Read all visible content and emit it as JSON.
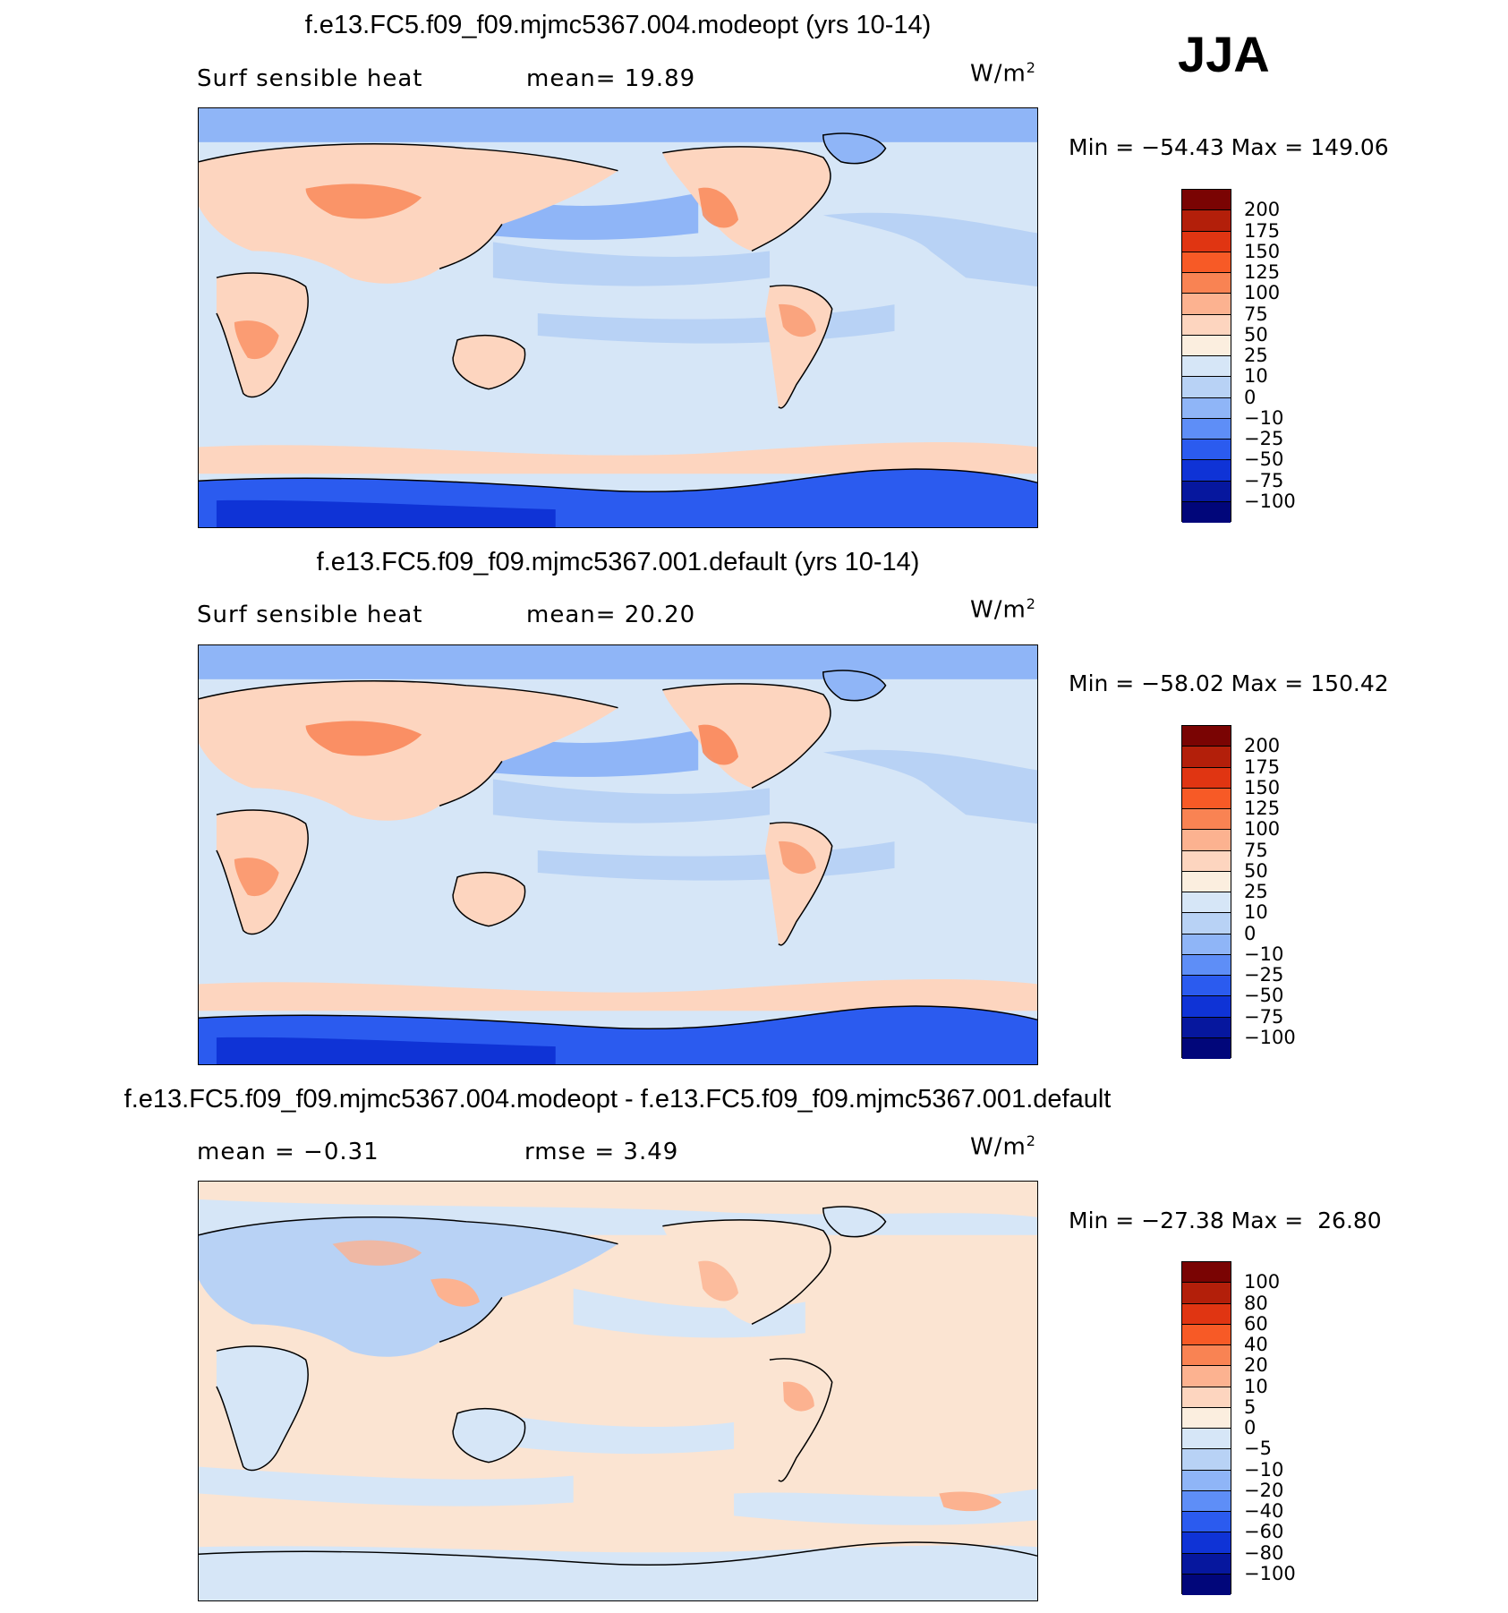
{
  "season": "JJA",
  "panels": [
    {
      "title": "f.e13.FC5.f09_f09.mjmc5367.004.modeopt (yrs 10-14)",
      "left_text": "Surf sensible heat",
      "center_text": "mean=  19.89",
      "units": "W/m",
      "units_sup": "2",
      "minmax": "Min = −54.43 Max = 149.06",
      "colorbar_labels": [
        "200",
        "175",
        "150",
        "125",
        "100",
        "75",
        "50",
        "25",
        "10",
        "0",
        "−10",
        "−25",
        "−50",
        "−75",
        "−100"
      ]
    },
    {
      "title": "f.e13.FC5.f09_f09.mjmc5367.001.default (yrs 10-14)",
      "left_text": "Surf sensible heat",
      "center_text": "mean=  20.20",
      "units": "W/m",
      "units_sup": "2",
      "minmax": "Min = −58.02 Max = 150.42",
      "colorbar_labels": [
        "200",
        "175",
        "150",
        "125",
        "100",
        "75",
        "50",
        "25",
        "10",
        "0",
        "−10",
        "−25",
        "−50",
        "−75",
        "−100"
      ]
    },
    {
      "title": "f.e13.FC5.f09_f09.mjmc5367.004.modeopt - f.e13.FC5.f09_f09.mjmc5367.001.default",
      "left_text": "mean =   −0.31",
      "center_text": "rmse =    3.49",
      "units": "W/m",
      "units_sup": "2",
      "minmax": "Min = −27.38 Max =  26.80",
      "colorbar_labels": [
        "100",
        "80",
        "60",
        "40",
        "20",
        "10",
        "5",
        "0",
        "−5",
        "−10",
        "−20",
        "−40",
        "−60",
        "−80",
        "−100"
      ]
    }
  ],
  "colorbar_colors": [
    "#7a0403",
    "#b31f0a",
    "#e03512",
    "#f75a26",
    "#f98353",
    "#fcb290",
    "#fdd5bf",
    "#fbeedf",
    "#d6e6f7",
    "#b8d2f5",
    "#8fb5f7",
    "#5e8ef7",
    "#2b5bef",
    "#0f33d6",
    "#06179e",
    "#01067a"
  ],
  "map_colors": {
    "ocean_pos": "#d6e6f7",
    "ocean_neg": "#b8d2f5",
    "ocean_more_neg": "#8fb5f7",
    "land_warm": "#fdd5bf",
    "land_hot": "#f98353",
    "ice": "#2b5bef",
    "diff_pos": "#fbe4d2",
    "diff_neg": "#d6e6f7"
  }
}
